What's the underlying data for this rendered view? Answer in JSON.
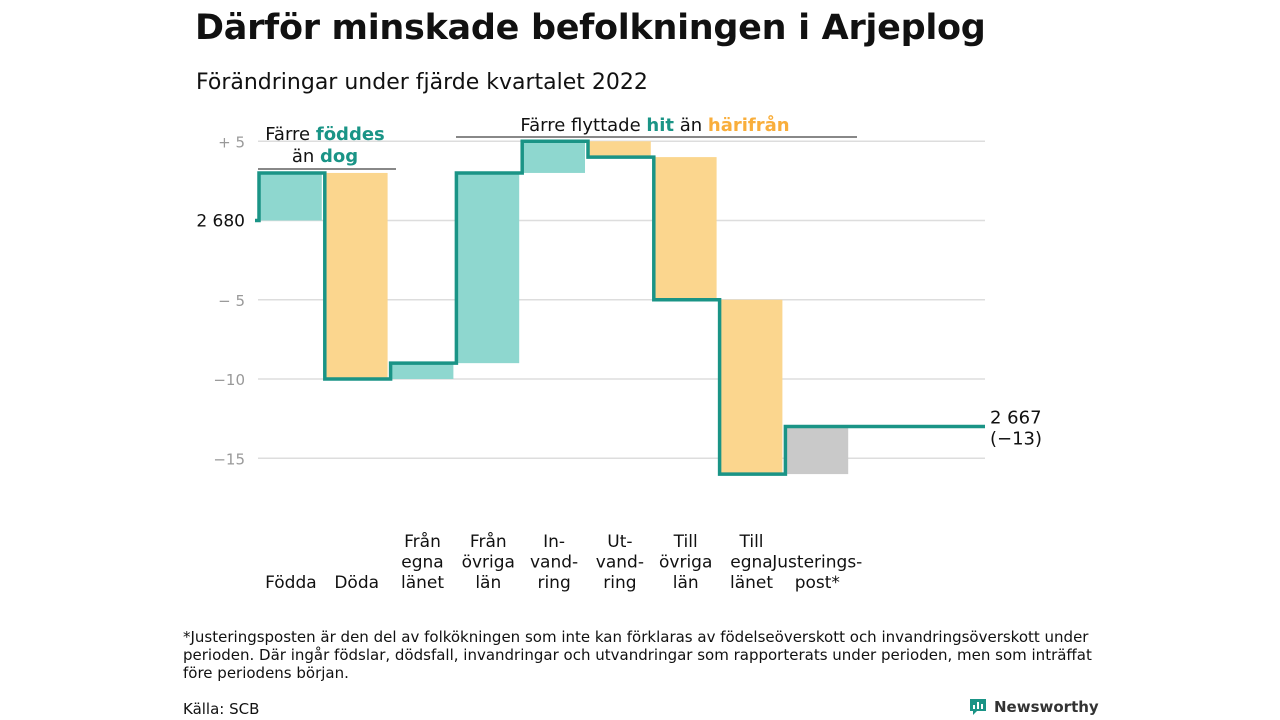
{
  "title": "Därför minskade befolkningen i Arjeplog",
  "subtitle": "Förändringar under fjärde kvartalet 2022",
  "colors": {
    "teal": "#1a9486",
    "teal_fill": "#8ed7cf",
    "orange": "#f9ae3b",
    "orange_fill": "#fbd68e",
    "gray_fill": "#c9c9c9",
    "grid": "#dddddd",
    "tick": "#999999"
  },
  "chart_data": {
    "type": "waterfall",
    "ylim": [
      -17,
      5.5
    ],
    "yticks": [
      {
        "value": 5,
        "label": "+ 5"
      },
      {
        "value": 0,
        "label": "2 680"
      },
      {
        "value": -5,
        "label": "− 5"
      },
      {
        "value": -10,
        "label": "−10"
      },
      {
        "value": -15,
        "label": "−15"
      }
    ],
    "start": {
      "value": 0,
      "population": "2 680"
    },
    "end": {
      "value": -13,
      "label_line1": "2 667",
      "label_line2": "(−13)"
    },
    "steps": [
      {
        "label": [
          "Födda"
        ],
        "change": 3,
        "color": "teal"
      },
      {
        "label": [
          "Döda"
        ],
        "change": -13,
        "color": "orange"
      },
      {
        "label": [
          "Från",
          "egna",
          "länet"
        ],
        "change": 1,
        "color": "teal"
      },
      {
        "label": [
          "Från",
          "övriga",
          "län"
        ],
        "change": 12,
        "color": "teal"
      },
      {
        "label": [
          "In-",
          "vand-",
          "ring"
        ],
        "change": 2,
        "color": "teal"
      },
      {
        "label": [
          "Ut-",
          "vand-",
          "ring"
        ],
        "change": -1,
        "color": "orange"
      },
      {
        "label": [
          "Till",
          "övriga",
          "län"
        ],
        "change": -9,
        "color": "orange"
      },
      {
        "label": [
          "Till",
          "egna",
          "länet"
        ],
        "change": -11,
        "color": "orange"
      },
      {
        "label": [
          "Justerings-",
          "post*"
        ],
        "change": 3,
        "color": "gray"
      }
    ],
    "annotations": [
      {
        "line1_parts": [
          "Färre ",
          "föddes"
        ],
        "line2_parts": [
          "än ",
          "dog"
        ]
      },
      {
        "line1_parts": [
          "Färre flyttade ",
          "hit",
          " än ",
          "härifrån"
        ]
      }
    ]
  },
  "footnote": "*Justeringsposten är den del av folkökningen som inte kan förklaras av födelseöverskott och invandringsöverskott under perioden. Där ingår födslar, dödsfall, invandringar och utvandringar som rapporterats under perioden, men som inträffat före periodens början.",
  "source": "Källa: SCB",
  "brand": {
    "name": "Newsworthy",
    "icon": "newsworthy-logo-icon"
  }
}
